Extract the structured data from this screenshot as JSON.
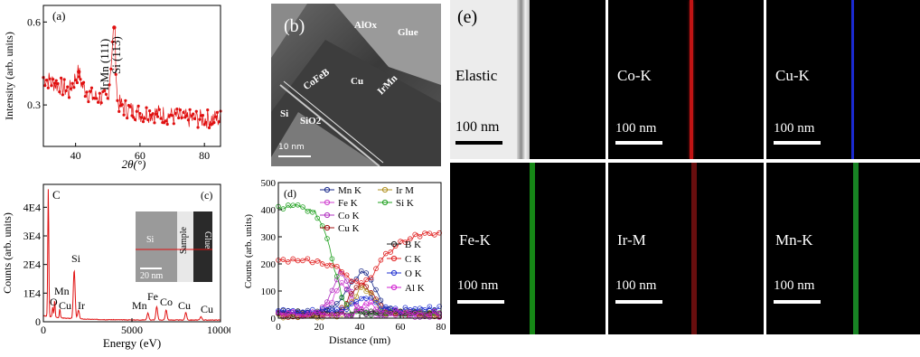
{
  "colors": {
    "red": "#e01010",
    "map_bg": "#000000",
    "cobalt": "#d01a1a",
    "copper": "#1a2ad0",
    "iron": "#1aa01a",
    "iridium": "#7a1010",
    "manganese": "#1c9a2a"
  },
  "chart_data": [
    {
      "id": "a",
      "type": "scatter",
      "panel_label": "(a)",
      "xlabel": "2θ(°)",
      "ylabel": "Intensity (arb. units)",
      "xlim": [
        30,
        85
      ],
      "ylim": [
        0.15,
        0.66
      ],
      "xticks": [
        "40",
        "60",
        "80"
      ],
      "yticks": [
        "0.3",
        "0.6"
      ],
      "annotations": [
        "IrMn (111)",
        "Si (113)"
      ],
      "baseline": [
        [
          30,
          0.4
        ],
        [
          35,
          0.37
        ],
        [
          38,
          0.35
        ],
        [
          40,
          0.4
        ],
        [
          41,
          0.42
        ],
        [
          42,
          0.37
        ],
        [
          45,
          0.33
        ],
        [
          50,
          0.32
        ],
        [
          52,
          0.58
        ],
        [
          53,
          0.31
        ],
        [
          55,
          0.29
        ],
        [
          60,
          0.27
        ],
        [
          65,
          0.27
        ],
        [
          70,
          0.26
        ],
        [
          75,
          0.25
        ],
        [
          80,
          0.25
        ],
        [
          85,
          0.25
        ]
      ],
      "peaks": [
        {
          "x": 41,
          "y": 0.42,
          "name": "IrMn (111)"
        },
        {
          "x": 52,
          "y": 0.58,
          "name": "Si (113)"
        }
      ]
    },
    {
      "id": "c",
      "type": "line",
      "panel_label": "(c)",
      "xlabel": "Energy (eV)",
      "ylabel": "Counts (arb. units)",
      "xlim": [
        0,
        10000
      ],
      "ylim": [
        0,
        48000
      ],
      "xticks": [
        "0",
        "5000",
        "10000"
      ],
      "yticks": [
        "0",
        "1E4",
        "2E4",
        "3E4",
        "4E4"
      ],
      "peak_labels": [
        "C",
        "O",
        "Mn",
        "Cu",
        "Si",
        "Ir",
        "Mn",
        "Fe",
        "Co",
        "Cu",
        "Cu"
      ],
      "peaks": [
        [
          277,
          44500
        ],
        [
          525,
          3500
        ],
        [
          637,
          6000
        ],
        [
          930,
          3200
        ],
        [
          1740,
          17000
        ],
        [
          1980,
          3000
        ],
        [
          5900,
          2500
        ],
        [
          6400,
          4600
        ],
        [
          6930,
          3500
        ],
        [
          8040,
          2600
        ],
        [
          8900,
          1200
        ]
      ],
      "inset_labels": [
        "Si",
        "Sample",
        "Glue",
        "20 nm"
      ]
    },
    {
      "id": "d",
      "type": "line",
      "panel_label": "(d)",
      "xlabel": "Distance (nm)",
      "ylabel": "Counts (arb. units)",
      "xlim": [
        0,
        80
      ],
      "ylim": [
        0,
        500
      ],
      "xticks": [
        "0",
        "20",
        "40",
        "60",
        "80"
      ],
      "yticks": [
        "0",
        "100",
        "200",
        "300",
        "400",
        "500"
      ],
      "series": [
        {
          "name": "Mn K",
          "color": "#1a2a8a",
          "points": [
            [
              0,
              20
            ],
            [
              20,
              20
            ],
            [
              30,
              60
            ],
            [
              38,
              150
            ],
            [
              42,
              175
            ],
            [
              46,
              130
            ],
            [
              52,
              40
            ],
            [
              60,
              20
            ],
            [
              80,
              20
            ]
          ]
        },
        {
          "name": "Fe K",
          "color": "#d040d0",
          "points": [
            [
              0,
              15
            ],
            [
              20,
              15
            ],
            [
              26,
              60
            ],
            [
              31,
              130
            ],
            [
              34,
              100
            ],
            [
              38,
              40
            ],
            [
              45,
              15
            ],
            [
              80,
              10
            ]
          ]
        },
        {
          "name": "Co K",
          "color": "#b030c0",
          "points": [
            [
              0,
              15
            ],
            [
              20,
              15
            ],
            [
              26,
              90
            ],
            [
              30,
              175
            ],
            [
              34,
              140
            ],
            [
              38,
              50
            ],
            [
              45,
              15
            ],
            [
              80,
              10
            ]
          ]
        },
        {
          "name": "Cu K",
          "color": "#a01010",
          "points": [
            [
              0,
              10
            ],
            [
              28,
              10
            ],
            [
              33,
              50
            ],
            [
              38,
              120
            ],
            [
              42,
              130
            ],
            [
              47,
              80
            ],
            [
              52,
              20
            ],
            [
              80,
              10
            ]
          ]
        },
        {
          "name": "Ir M",
          "color": "#b09020",
          "points": [
            [
              0,
              10
            ],
            [
              30,
              10
            ],
            [
              36,
              60
            ],
            [
              41,
              115
            ],
            [
              45,
              95
            ],
            [
              50,
              30
            ],
            [
              80,
              10
            ]
          ]
        },
        {
          "name": "Si K",
          "color": "#20a020",
          "points": [
            [
              0,
              410
            ],
            [
              10,
              410
            ],
            [
              18,
              395
            ],
            [
              24,
              300
            ],
            [
              28,
              170
            ],
            [
              32,
              60
            ],
            [
              36,
              20
            ],
            [
              80,
              15
            ]
          ]
        },
        {
          "name": "B K",
          "color": "#222222",
          "points": [
            [
              0,
              20
            ],
            [
              80,
              20
            ]
          ]
        },
        {
          "name": "C K",
          "color": "#e02020",
          "points": [
            [
              0,
              215
            ],
            [
              20,
              210
            ],
            [
              28,
              190
            ],
            [
              34,
              150
            ],
            [
              40,
              120
            ],
            [
              46,
              150
            ],
            [
              52,
              230
            ],
            [
              60,
              280
            ],
            [
              70,
              310
            ],
            [
              80,
              310
            ]
          ]
        },
        {
          "name": "O K",
          "color": "#2030d0",
          "points": [
            [
              0,
              25
            ],
            [
              30,
              25
            ],
            [
              38,
              60
            ],
            [
              44,
              80
            ],
            [
              50,
              40
            ],
            [
              56,
              30
            ],
            [
              80,
              35
            ]
          ]
        },
        {
          "name": "Al K",
          "color": "#d020d0",
          "points": [
            [
              0,
              15
            ],
            [
              36,
              15
            ],
            [
              42,
              45
            ],
            [
              46,
              55
            ],
            [
              50,
              25
            ],
            [
              80,
              15
            ]
          ]
        }
      ]
    }
  ],
  "panel_b": {
    "label": "(b)",
    "texts": [
      "AlOx",
      "Glue",
      "CoFeB",
      "Cu",
      "IrMn",
      "Si",
      "SiO2",
      "10 nm"
    ]
  },
  "panel_e": {
    "label": "(e)",
    "tiles": [
      {
        "name": "Elastic",
        "scale": "100 nm"
      },
      {
        "name": "Co-K",
        "scale": "100 nm"
      },
      {
        "name": "Cu-K",
        "scale": "100 nm"
      },
      {
        "name": "Fe-K",
        "scale": "100 nm"
      },
      {
        "name": "Ir-M",
        "scale": "100 nm"
      },
      {
        "name": "Mn-K",
        "scale": "100 nm"
      }
    ]
  }
}
